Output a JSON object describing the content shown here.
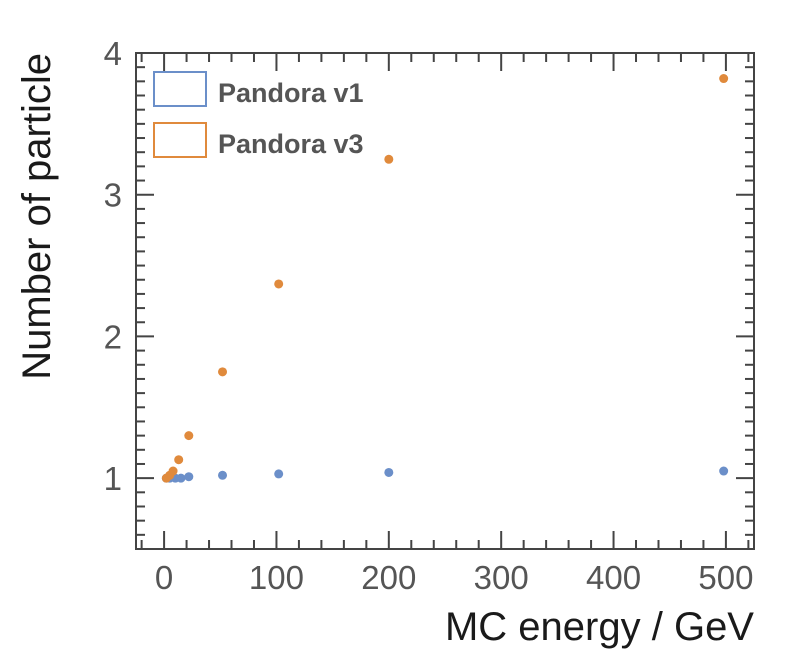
{
  "chart_data": {
    "type": "scatter",
    "title": "",
    "xlabel": "MC energy / GeV",
    "ylabel": "Number of particle",
    "xlim": [
      -25,
      525
    ],
    "ylim": [
      0.5,
      4.0
    ],
    "x_ticks": [
      0,
      100,
      200,
      300,
      400,
      500
    ],
    "x_tick_labels": [
      "0",
      "100",
      "200",
      "300",
      "400",
      "500"
    ],
    "y_ticks": [
      1,
      2,
      3,
      4
    ],
    "y_tick_labels": [
      "1",
      "2",
      "3",
      "4"
    ],
    "grid": false,
    "legend_position": "top-left",
    "series": [
      {
        "name": "Pandora v1",
        "color": "#6b8fc9",
        "points": [
          {
            "x": 2,
            "y": 1.0
          },
          {
            "x": 5,
            "y": 1.0
          },
          {
            "x": 10,
            "y": 1.0
          },
          {
            "x": 15,
            "y": 1.0
          },
          {
            "x": 22,
            "y": 1.01
          },
          {
            "x": 52,
            "y": 1.02
          },
          {
            "x": 102,
            "y": 1.03
          },
          {
            "x": 200,
            "y": 1.04
          },
          {
            "x": 498,
            "y": 1.05
          }
        ]
      },
      {
        "name": "Pandora v3",
        "color": "#e08a3c",
        "points": [
          {
            "x": 2,
            "y": 1.0
          },
          {
            "x": 5,
            "y": 1.02
          },
          {
            "x": 8,
            "y": 1.05
          },
          {
            "x": 13,
            "y": 1.13
          },
          {
            "x": 22,
            "y": 1.3
          },
          {
            "x": 52,
            "y": 1.75
          },
          {
            "x": 102,
            "y": 2.37
          },
          {
            "x": 200,
            "y": 3.25
          },
          {
            "x": 498,
            "y": 3.82
          }
        ]
      }
    ]
  }
}
